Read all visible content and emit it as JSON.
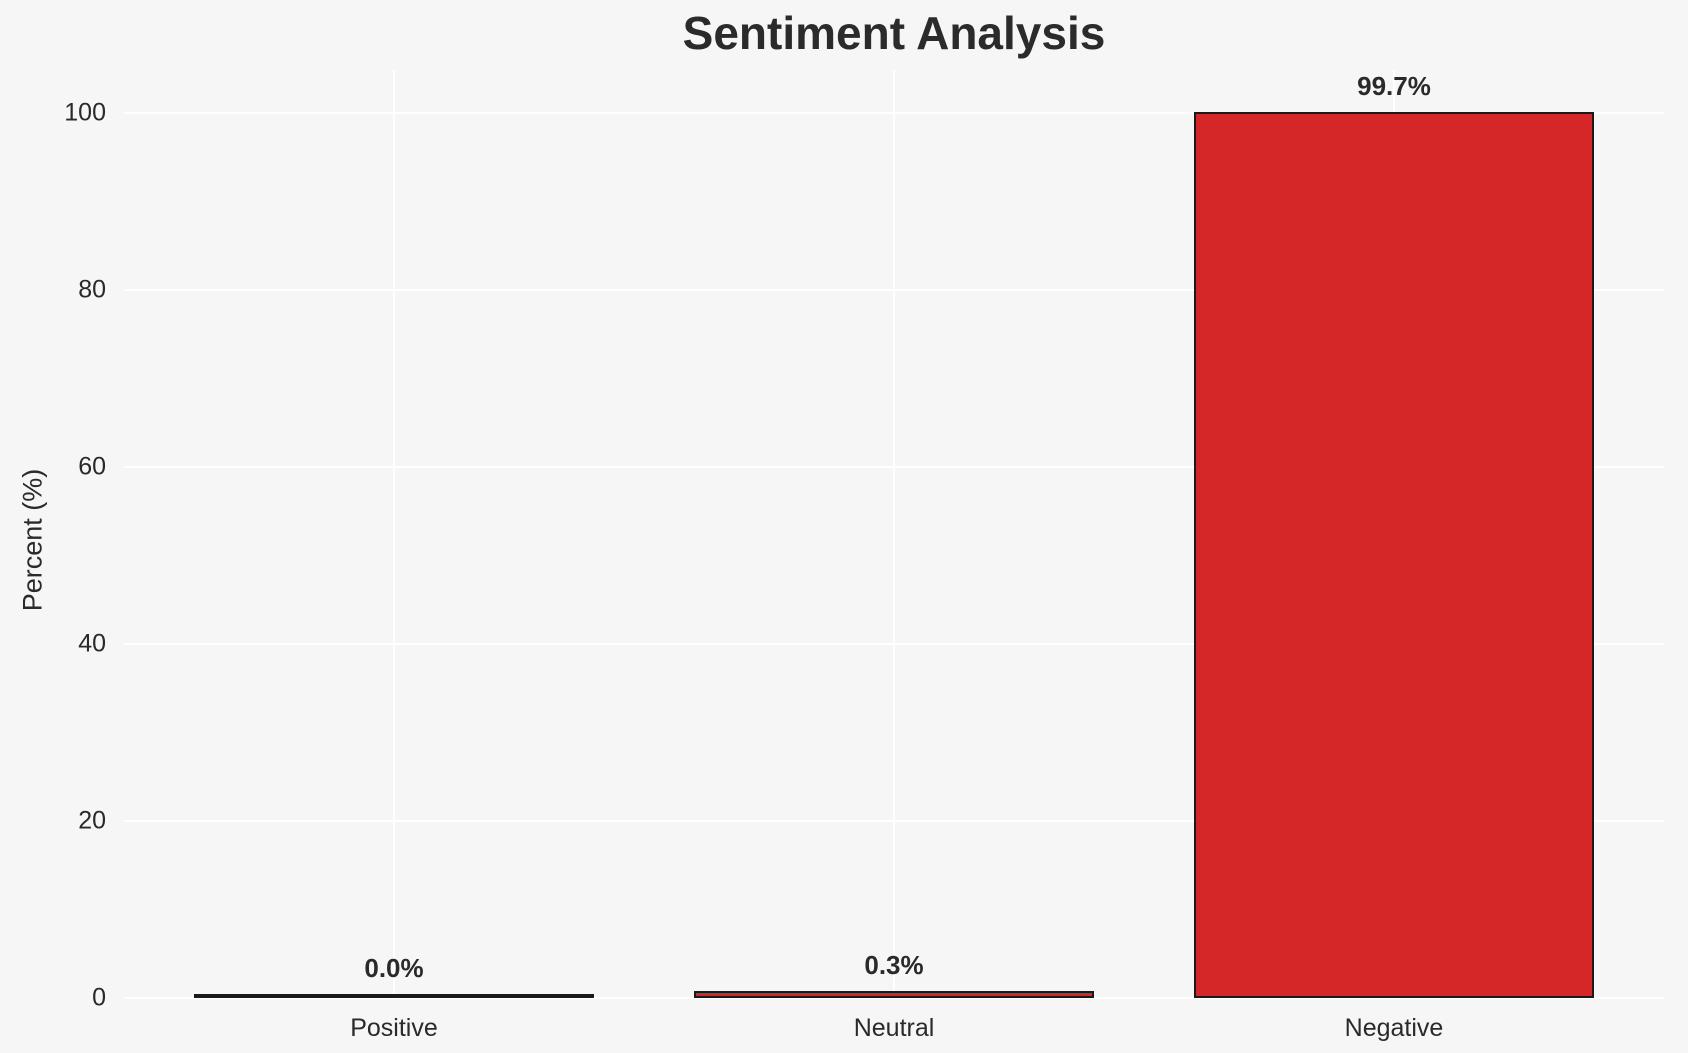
{
  "chart_data": {
    "type": "bar",
    "title": "Sentiment Analysis",
    "categories": [
      "Positive",
      "Neutral",
      "Negative"
    ],
    "values": [
      0.0,
      0.3,
      99.7
    ],
    "bar_labels": [
      "0.0%",
      "0.3%",
      "99.7%"
    ],
    "xlabel": "",
    "ylabel": "Percent (%)",
    "ylim": [
      0,
      100
    ],
    "yticks": [
      0,
      20,
      40,
      60,
      80,
      100
    ],
    "grid": "on",
    "legend": "none",
    "colors": {
      "bar_fill": "#d62728",
      "bar_edge": "#1a1a1a",
      "background": "#f6f6f6",
      "gridline": "#ffffff",
      "text": "#2a2a2a"
    }
  }
}
